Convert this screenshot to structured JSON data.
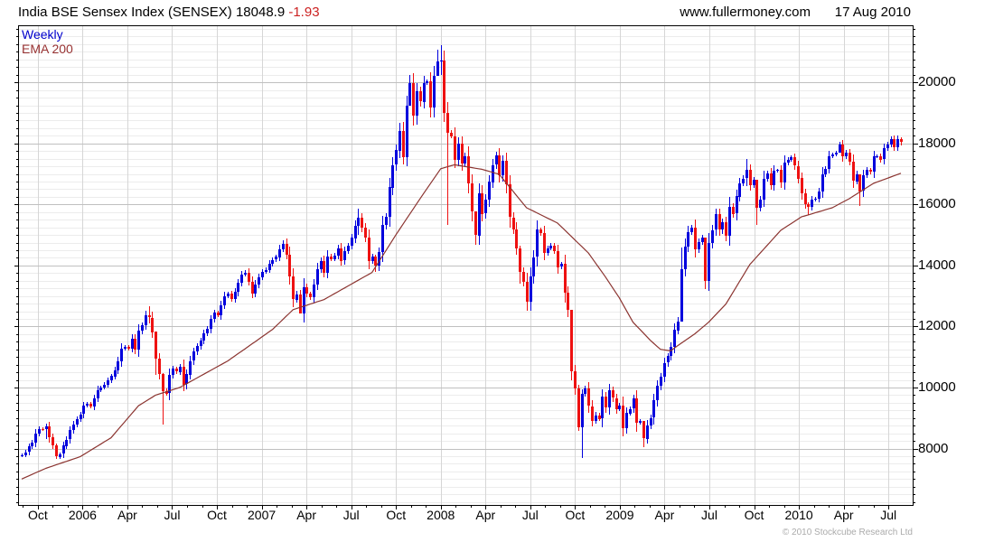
{
  "header": {
    "title_main": "India BSE Sensex Index (SENSEX) 18048.9 ",
    "title_change": "-1.93",
    "site": "www.fullermoney.com",
    "date": "17 Aug 2010"
  },
  "legend": {
    "weekly": "Weekly",
    "ema": "EMA 200"
  },
  "footer": {
    "copyright": "© 2010 Stockcube Research Ltd"
  },
  "colors": {
    "up": "#0000dd",
    "down": "#ee1111",
    "ema_line": "#8b3430",
    "legend_weekly": "#0000cc",
    "legend_ema": "#993333",
    "title_change": "#cc2222",
    "grid_minor": "#ececec",
    "grid_major": "#c0c0c0",
    "grid_vert": "#d6d6d6",
    "axis": "#000000",
    "copyright_gray": "#ababab"
  },
  "chart_data": {
    "type": "candlestick",
    "timeframe": "weekly",
    "title": "India BSE Sensex Index (SENSEX)",
    "last_price": 18048.9,
    "last_change": -1.93,
    "overlay": "EMA 200",
    "grid": true,
    "legend_position": "top-left",
    "value_axis_side": "right",
    "ylim": [
      6150,
      21870
    ],
    "y_tick_labels": [
      8000,
      10000,
      12000,
      14000,
      16000,
      18000,
      20000
    ],
    "y_minor_step": 250,
    "x_labels": [
      "Oct",
      "2006",
      "Apr",
      "Jul",
      "Oct",
      "2007",
      "Apr",
      "Jul",
      "Oct",
      "2008",
      "Apr",
      "Jul",
      "Oct",
      "2009",
      "Apr",
      "Jul",
      "Oct",
      "2010",
      "Apr",
      "Jul"
    ],
    "first_quarter_week_index": 4.7,
    "weeks_per_quarter": 13.035,
    "weeks_per_month": 4.345,
    "closes": [
      7790,
      7880,
      8060,
      8190,
      8500,
      8650,
      8630,
      8720,
      8360,
      8100,
      7730,
      7810,
      8090,
      8290,
      8600,
      8790,
      8960,
      9120,
      9400,
      9470,
      9390,
      9650,
      9920,
      10000,
      10090,
      10230,
      10370,
      10570,
      10860,
      11280,
      11340,
      11280,
      11600,
      11240,
      11850,
      12040,
      12360,
      12290,
      11820,
      10940,
      10450,
      9890,
      9810,
      10400,
      10610,
      10510,
      10680,
      10090,
      10430,
      10870,
      11170,
      11350,
      11530,
      11780,
      11920,
      12240,
      12450,
      12370,
      12700,
      12990,
      13070,
      12900,
      13130,
      13430,
      13700,
      13770,
      13470,
      13080,
      13380,
      13620,
      13790,
      13860,
      14060,
      14180,
      14280,
      14540,
      14720,
      14350,
      13630,
      12890,
      13060,
      12430,
      13290,
      13070,
      12960,
      13380,
      13880,
      14150,
      13770,
      14300,
      14220,
      14330,
      14570,
      14160,
      14470,
      14650,
      14910,
      15310,
      15570,
      15230,
      14900,
      14140,
      14290,
      13990,
      14425,
      15320,
      15590,
      16560,
      17290,
      17770,
      18420,
      17560,
      19240,
      19980,
      18910,
      19700,
      19360,
      19970,
      20030,
      19160,
      20210,
      20690,
      20730,
      19010,
      18360,
      18240,
      17460,
      18000,
      17350,
      17580,
      16680,
      15760,
      14990,
      16370,
      15700,
      16150,
      16740,
      17290,
      17600,
      16950,
      17430,
      16650,
      15570,
      15190,
      14570,
      13800,
      13470,
      12810,
      13640,
      14270,
      15170,
      15050,
      14400,
      14560,
      14650,
      14480,
      13940,
      14040,
      13100,
      12530,
      10530,
      9980,
      8700,
      9790,
      9960,
      9390,
      8920,
      9090,
      8970,
      9690,
      9330,
      9900,
      9650,
      9300,
      9420,
      8670,
      9160,
      9300,
      9630,
      8840,
      8890,
      8330,
      8760,
      9000,
      9570,
      10050,
      10350,
      10800,
      11020,
      11330,
      11880,
      12170,
      13890,
      14620,
      15100,
      15240,
      14520,
      14760,
      14920,
      13500,
      14740,
      15160,
      15670,
      15160,
      15410,
      14980,
      15920,
      15690,
      16260,
      16690,
      16850,
      17130,
      16640,
      16810,
      15900,
      16160,
      16850,
      17020,
      16630,
      17100,
      17120,
      16720,
      17360,
      17460,
      17540,
      17260,
      16860,
      16360,
      16000,
      15920,
      16150,
      16190,
      16430,
      17000,
      17170,
      17580,
      17645,
      17690,
      17960,
      17570,
      17690,
      17400,
      16770,
      17000,
      16450,
      16950,
      17120,
      17060,
      17570,
      17580,
      17460,
      17830,
      17960,
      18130,
      17870,
      18140,
      18048.9
    ],
    "first_open": 7760,
    "wick_overrides": {
      "7": [
        8800,
        8310
      ],
      "10": [
        8150,
        7656
      ],
      "37": [
        12671,
        12100
      ],
      "39": [
        11300,
        10400
      ],
      "41": [
        10470,
        8799
      ],
      "81": [
        13200,
        12430
      ],
      "98": [
        15868,
        15000
      ],
      "103": [
        14360,
        13780
      ],
      "111": [
        18700,
        17307
      ],
      "113": [
        20238,
        19400
      ],
      "121": [
        21080,
        20200
      ],
      "122": [
        21206,
        20250
      ],
      "124": [
        19350,
        15332
      ],
      "132": [
        15200,
        14677
      ],
      "145": [
        14650,
        13405
      ],
      "147": [
        13750,
        12514
      ],
      "160": [
        12200,
        10240
      ],
      "162": [
        10100,
        8566
      ],
      "163": [
        9950,
        7697
      ],
      "181": [
        8850,
        8047
      ],
      "192": [
        14580,
        12860
      ],
      "199": [
        14050,
        13220
      ],
      "211": [
        17493,
        16600
      ],
      "214": [
        16270,
        15330
      ],
      "229": [
        16060,
        15652
      ],
      "238": [
        18048,
        17700
      ],
      "244": [
        16750,
        15960
      ],
      "256": [
        18190,
        17920
      ]
    },
    "ema_anchors": [
      [
        0,
        7000
      ],
      [
        7,
        7350
      ],
      [
        17,
        7730
      ],
      [
        26,
        8350
      ],
      [
        34,
        9400
      ],
      [
        39,
        9750
      ],
      [
        46,
        10000
      ],
      [
        60,
        10870
      ],
      [
        73,
        11900
      ],
      [
        79,
        12550
      ],
      [
        88,
        12880
      ],
      [
        102,
        13770
      ],
      [
        109,
        15010
      ],
      [
        116,
        16190
      ],
      [
        122,
        17170
      ],
      [
        126,
        17300
      ],
      [
        134,
        17150
      ],
      [
        139,
        16990
      ],
      [
        147,
        15890
      ],
      [
        156,
        15390
      ],
      [
        165,
        14410
      ],
      [
        170,
        13620
      ],
      [
        174,
        12940
      ],
      [
        178,
        12140
      ],
      [
        183,
        11550
      ],
      [
        186,
        11250
      ],
      [
        189,
        11200
      ],
      [
        191,
        11370
      ],
      [
        196,
        11760
      ],
      [
        200,
        12140
      ],
      [
        205,
        12730
      ],
      [
        212,
        14030
      ],
      [
        221,
        15150
      ],
      [
        227,
        15590
      ],
      [
        236,
        15890
      ],
      [
        241,
        16190
      ],
      [
        248,
        16690
      ],
      [
        256,
        17020
      ]
    ]
  }
}
